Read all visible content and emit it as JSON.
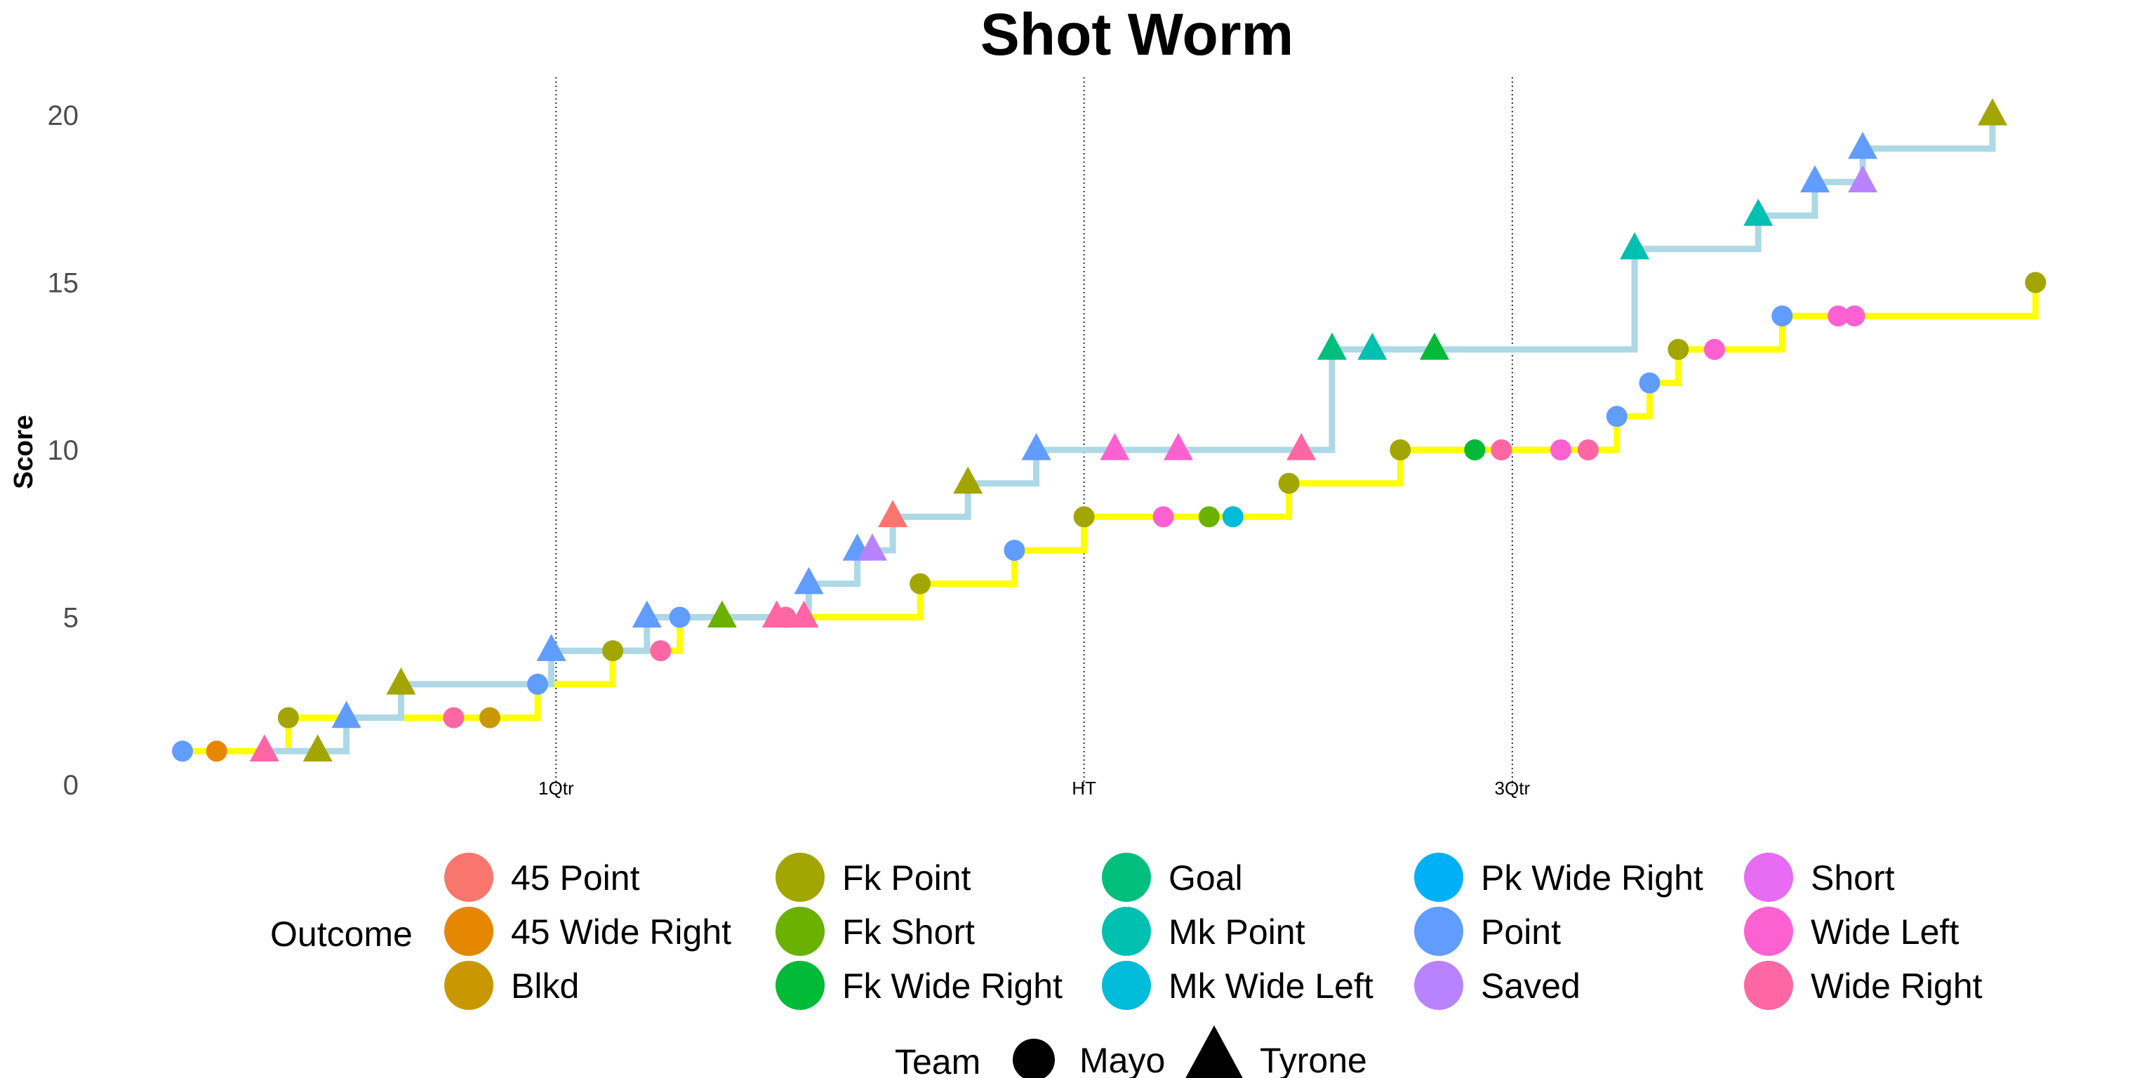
{
  "chart_data": {
    "type": "line",
    "title": "Shot Worm",
    "xlabel": "",
    "ylabel": "Score",
    "ylim": [
      0,
      21
    ],
    "yticks": [
      0,
      5,
      10,
      15,
      20
    ],
    "xlim": [
      0,
      2800
    ],
    "grid": false,
    "legend_position": "bottom",
    "vlines": [
      {
        "x": 547,
        "label": "1Qtr"
      },
      {
        "x": 1320,
        "label": "HT"
      },
      {
        "x": 1947,
        "label": "3Qtr"
      }
    ],
    "series": [
      {
        "name": "Mayo",
        "line_color": "#ffff00",
        "shape": "circle",
        "points": [
          {
            "x": 0,
            "y": 1,
            "outcome": "Point"
          },
          {
            "x": 50,
            "y": 1,
            "outcome": "45 Wide Right"
          },
          {
            "x": 155,
            "y": 2,
            "outcome": "Fk Point"
          },
          {
            "x": 397,
            "y": 2,
            "outcome": "Wide Right"
          },
          {
            "x": 450,
            "y": 2,
            "outcome": "Blkd"
          },
          {
            "x": 520,
            "y": 3,
            "outcome": "Point"
          },
          {
            "x": 630,
            "y": 4,
            "outcome": "Fk Point"
          },
          {
            "x": 700,
            "y": 4,
            "outcome": "Wide Right"
          },
          {
            "x": 728,
            "y": 5,
            "outcome": "Point"
          },
          {
            "x": 883,
            "y": 5,
            "outcome": "Wide Right"
          },
          {
            "x": 1080,
            "y": 6,
            "outcome": "Fk Point"
          },
          {
            "x": 1218,
            "y": 7,
            "outcome": "Point"
          },
          {
            "x": 1320,
            "y": 8,
            "outcome": "Fk Point"
          },
          {
            "x": 1436,
            "y": 8,
            "outcome": "Wide Left"
          },
          {
            "x": 1503,
            "y": 8,
            "outcome": "Fk Short"
          },
          {
            "x": 1538,
            "y": 8,
            "outcome": "Mk Wide Left"
          },
          {
            "x": 1620,
            "y": 9,
            "outcome": "Fk Point"
          },
          {
            "x": 1783,
            "y": 10,
            "outcome": "Fk Point"
          },
          {
            "x": 1892,
            "y": 10,
            "outcome": "Fk Wide Right"
          },
          {
            "x": 1931,
            "y": 10,
            "outcome": "Wide Right"
          },
          {
            "x": 2018,
            "y": 10,
            "outcome": "Wide Left"
          },
          {
            "x": 2058,
            "y": 10,
            "outcome": "Wide Right"
          },
          {
            "x": 2100,
            "y": 11,
            "outcome": "Point"
          },
          {
            "x": 2148,
            "y": 12,
            "outcome": "Point"
          },
          {
            "x": 2190,
            "y": 13,
            "outcome": "Fk Point"
          },
          {
            "x": 2243,
            "y": 13,
            "outcome": "Wide Left"
          },
          {
            "x": 2342,
            "y": 14,
            "outcome": "Point"
          },
          {
            "x": 2424,
            "y": 14,
            "outcome": "Wide Left"
          },
          {
            "x": 2448,
            "y": 14,
            "outcome": "Wide Left"
          },
          {
            "x": 2713,
            "y": 15,
            "outcome": "Fk Point"
          }
        ]
      },
      {
        "name": "Tyrone",
        "line_color": "#add8e6",
        "shape": "triangle",
        "points": [
          {
            "x": 120,
            "y": 1,
            "outcome": "Wide Right"
          },
          {
            "x": 198,
            "y": 1,
            "outcome": "Fk Point"
          },
          {
            "x": 240,
            "y": 2,
            "outcome": "Point"
          },
          {
            "x": 320,
            "y": 3,
            "outcome": "Fk Point"
          },
          {
            "x": 540,
            "y": 4,
            "outcome": "Point"
          },
          {
            "x": 680,
            "y": 5,
            "outcome": "Point"
          },
          {
            "x": 790,
            "y": 5,
            "outcome": "Fk Short"
          },
          {
            "x": 870,
            "y": 5,
            "outcome": "Wide Right"
          },
          {
            "x": 910,
            "y": 5,
            "outcome": "Wide Right"
          },
          {
            "x": 917,
            "y": 6,
            "outcome": "Point"
          },
          {
            "x": 988,
            "y": 7,
            "outcome": "Point"
          },
          {
            "x": 1010,
            "y": 7,
            "outcome": "Saved"
          },
          {
            "x": 1040,
            "y": 8,
            "outcome": "45 Point"
          },
          {
            "x": 1150,
            "y": 9,
            "outcome": "Fk Point"
          },
          {
            "x": 1250,
            "y": 10,
            "outcome": "Point"
          },
          {
            "x": 1365,
            "y": 10,
            "outcome": "Wide Left"
          },
          {
            "x": 1458,
            "y": 10,
            "outcome": "Wide Left"
          },
          {
            "x": 1638,
            "y": 10,
            "outcome": "Wide Right"
          },
          {
            "x": 1683,
            "y": 13,
            "outcome": "Goal"
          },
          {
            "x": 1742,
            "y": 13,
            "outcome": "Mk Point"
          },
          {
            "x": 1833,
            "y": 13,
            "outcome": "Fk Wide Right"
          },
          {
            "x": 2126,
            "y": 16,
            "outcome": "Mk Point"
          },
          {
            "x": 2307,
            "y": 17,
            "outcome": "Mk Point"
          },
          {
            "x": 2390,
            "y": 18,
            "outcome": "Point"
          },
          {
            "x": 2460,
            "y": 18,
            "outcome": "Saved"
          },
          {
            "x": 2460,
            "y": 19,
            "outcome": "Point"
          },
          {
            "x": 2650,
            "y": 20,
            "outcome": "Fk Point"
          }
        ]
      }
    ]
  },
  "legend": {
    "outcome_title": "Outcome",
    "outcomes": [
      {
        "label": "45 Point",
        "color": "#f8766d"
      },
      {
        "label": "45 Wide Right",
        "color": "#e58700"
      },
      {
        "label": "Blkd",
        "color": "#c99800"
      },
      {
        "label": "Fk Point",
        "color": "#a3a500"
      },
      {
        "label": "Fk Short",
        "color": "#6bb100"
      },
      {
        "label": "Fk Wide Right",
        "color": "#00ba38"
      },
      {
        "label": "Goal",
        "color": "#00bf7d"
      },
      {
        "label": "Mk Point",
        "color": "#00c0af"
      },
      {
        "label": "Mk Wide Left",
        "color": "#00bcd8"
      },
      {
        "label": "Pk Wide Right",
        "color": "#00b0f6"
      },
      {
        "label": "Point",
        "color": "#619cff"
      },
      {
        "label": "Saved",
        "color": "#b983ff"
      },
      {
        "label": "Short",
        "color": "#e76bf3"
      },
      {
        "label": "Wide Left",
        "color": "#fd61d1"
      },
      {
        "label": "Wide Right",
        "color": "#ff67a4"
      }
    ],
    "team_title": "Team",
    "teams": [
      {
        "label": "Mayo",
        "shape": "circle"
      },
      {
        "label": "Tyrone",
        "shape": "triangle"
      }
    ]
  }
}
